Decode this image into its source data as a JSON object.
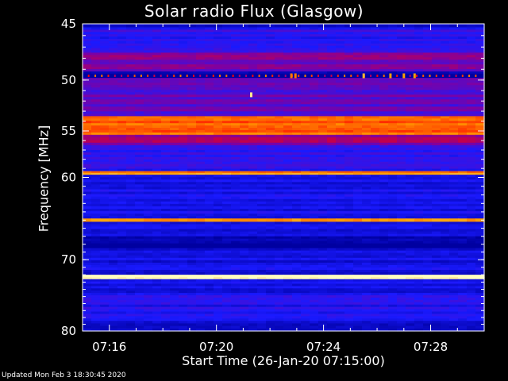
{
  "chart_data": {
    "type": "heatmap",
    "title": "Solar radio Flux (Glasgow)",
    "xlabel": "Start Time (26-Jan-20 07:15:00)",
    "ylabel": "Frequency [MHz]",
    "x_ticks": [
      "07:16",
      "07:20",
      "07:24",
      "07:28"
    ],
    "x_tick_minutes": [
      1,
      5,
      9,
      13
    ],
    "xlim_minutes": [
      0,
      15
    ],
    "y_ticks": [
      45,
      50,
      55,
      60,
      70,
      80
    ],
    "ylim": [
      45,
      80
    ],
    "y_scale": "log",
    "colormap": [
      "#0000a0",
      "#1a1aff",
      "#8000a0",
      "#ff0000",
      "#ffa000",
      "#ffffc0"
    ],
    "bands": [
      {
        "freq": [
          45.0,
          45.3
        ],
        "level": 0.05
      },
      {
        "freq": [
          45.3,
          47.5
        ],
        "level": 0.22
      },
      {
        "freq": [
          47.5,
          49.2
        ],
        "level": 0.38
      },
      {
        "freq": [
          49.2,
          49.8
        ],
        "level": 0.0
      },
      {
        "freq": [
          49.8,
          53.5
        ],
        "level": 0.32
      },
      {
        "freq": [
          53.5,
          55.4
        ],
        "level": 0.72
      },
      {
        "freq": [
          55.4,
          56.5
        ],
        "level": 0.42
      },
      {
        "freq": [
          56.5,
          59.3
        ],
        "level": 0.22
      },
      {
        "freq": [
          59.3,
          59.7
        ],
        "level": 0.78
      },
      {
        "freq": [
          59.7,
          64.8
        ],
        "level": 0.15
      },
      {
        "freq": [
          64.8,
          65.2
        ],
        "level": 0.82
      },
      {
        "freq": [
          65.2,
          67.0
        ],
        "level": 0.15
      },
      {
        "freq": [
          67.0,
          68.5
        ],
        "level": 0.03
      },
      {
        "freq": [
          68.5,
          72.0
        ],
        "level": 0.14
      },
      {
        "freq": [
          72.0,
          72.6
        ],
        "level": 1.0
      },
      {
        "freq": [
          72.6,
          74.5
        ],
        "level": 0.14
      },
      {
        "freq": [
          74.5,
          78.5
        ],
        "level": 0.2
      },
      {
        "freq": [
          78.5,
          80.0
        ],
        "level": 0.12
      }
    ],
    "bursts": [
      {
        "minute": 6.3,
        "freq": 51.4,
        "level": 0.95
      },
      {
        "minute": 7.8,
        "freq": 49.6,
        "level": 0.75
      },
      {
        "minute": 7.95,
        "freq": 49.6,
        "level": 0.75
      },
      {
        "minute": 10.5,
        "freq": 49.6,
        "level": 0.85
      },
      {
        "minute": 11.5,
        "freq": 49.6,
        "level": 0.8
      },
      {
        "minute": 12.0,
        "freq": 49.6,
        "level": 0.8
      },
      {
        "minute": 12.4,
        "freq": 49.6,
        "level": 0.8
      }
    ],
    "grid": false
  },
  "footer": {
    "updated": "Updated Mon Feb 3 18:30:45 2020"
  }
}
